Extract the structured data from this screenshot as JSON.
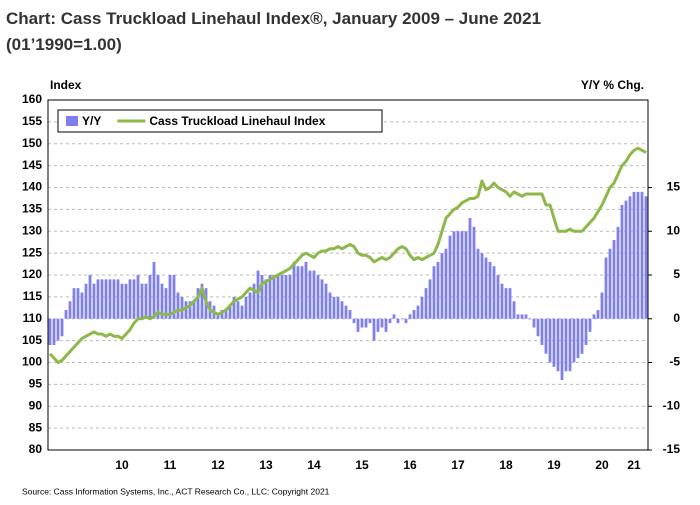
{
  "chart_data": {
    "type": "combo",
    "title": "Chart: Cass Truckload Linehaul Index®, January 2009 – June 2021",
    "subtitle": "(01’1990=1.00)",
    "y_label": "Index",
    "y2_label": "Y/Y % Chg.",
    "source": "Source: Cass Information Systems, Inc., ACT Research Co., LLC: Copyright 2021",
    "categories": [
      null,
      null,
      null,
      null,
      null,
      null,
      null,
      null,
      null,
      null,
      null,
      null,
      null,
      null,
      null,
      null,
      null,
      null,
      "10",
      null,
      null,
      null,
      null,
      null,
      null,
      null,
      null,
      null,
      null,
      null,
      "11",
      null,
      null,
      null,
      null,
      null,
      null,
      null,
      null,
      null,
      null,
      null,
      "12",
      null,
      null,
      null,
      null,
      null,
      null,
      null,
      null,
      null,
      null,
      null,
      "13",
      null,
      null,
      null,
      null,
      null,
      null,
      null,
      null,
      null,
      null,
      null,
      "14",
      null,
      null,
      null,
      null,
      null,
      null,
      null,
      null,
      null,
      null,
      null,
      "15",
      null,
      null,
      null,
      null,
      null,
      null,
      null,
      null,
      null,
      null,
      null,
      "16",
      null,
      null,
      null,
      null,
      null,
      null,
      null,
      null,
      null,
      null,
      null,
      "17",
      null,
      null,
      null,
      null,
      null,
      null,
      null,
      null,
      null,
      null,
      null,
      "18",
      null,
      null,
      null,
      null,
      null,
      null,
      null,
      null,
      null,
      null,
      null,
      "19",
      null,
      null,
      null,
      null,
      null,
      null,
      null,
      null,
      null,
      null,
      null,
      "20",
      null,
      null,
      null,
      null,
      null,
      null,
      null,
      "21",
      null,
      null,
      null
    ],
    "ylim": [
      80,
      160
    ],
    "yticks": [
      80,
      85,
      90,
      95,
      100,
      105,
      110,
      115,
      120,
      125,
      130,
      135,
      140,
      145,
      150,
      155,
      160
    ],
    "y2lim": [
      -15,
      25
    ],
    "y2ticks": [
      -15,
      -10,
      -5,
      0,
      5,
      10,
      15
    ],
    "grid": true,
    "legend": "top-left",
    "series": [
      {
        "name": "Y/Y",
        "type": "bar",
        "axis": "y2",
        "color": "#7f7ff0",
        "values": [
          -3,
          -3,
          -2.5,
          -2,
          1,
          2,
          3.5,
          3.5,
          3,
          4,
          5,
          4,
          4.5,
          4.5,
          4.5,
          4.5,
          4.5,
          4.5,
          4,
          4,
          4.5,
          4.5,
          5,
          4,
          4,
          5,
          6.5,
          5,
          4,
          3.5,
          5,
          5,
          3,
          2.5,
          2,
          2,
          2,
          3.5,
          4,
          3.5,
          2,
          1.5,
          0.5,
          1,
          1,
          1.5,
          2.5,
          2,
          1.5,
          2.5,
          3,
          4,
          5.5,
          5,
          4.5,
          5,
          5,
          5,
          5,
          5,
          5,
          6.5,
          6,
          6,
          6.5,
          5.5,
          5.5,
          5,
          4.5,
          4,
          3,
          2.5,
          2.5,
          2,
          1.5,
          1,
          -0.5,
          -1.5,
          -1,
          -1,
          -0.5,
          -2.5,
          -1.5,
          -1,
          -1.5,
          -0.5,
          0.5,
          -0.5,
          0,
          -0.5,
          0.5,
          1,
          1.5,
          2.5,
          3.5,
          4.5,
          6,
          6.5,
          7.5,
          8,
          9.5,
          10,
          10,
          10,
          10,
          11.5,
          10.5,
          8,
          7.5,
          7,
          6.5,
          6,
          5,
          4,
          3.5,
          3.5,
          2,
          0.5,
          0.5,
          0.5,
          0,
          -1,
          -2,
          -3,
          -4,
          -5,
          -5.5,
          -6,
          -7,
          -6,
          -6,
          -5,
          -4.5,
          -4,
          -3,
          -1.5,
          0.5,
          1,
          3,
          7,
          8,
          9,
          10.5,
          13,
          13.5,
          14,
          14.5,
          14.5,
          14.5,
          14
        ]
      },
      {
        "name": "Cass Truckload Linehaul Index",
        "type": "line",
        "axis": "y",
        "color": "#8db84a",
        "values": [
          102,
          101,
          100,
          100.5,
          101.5,
          102.5,
          103.5,
          104.5,
          105.5,
          106,
          106.5,
          107,
          106.5,
          106.5,
          106,
          106.5,
          106,
          106,
          105.5,
          106.5,
          107.5,
          109,
          110,
          110,
          110.5,
          110,
          110.5,
          111.5,
          111,
          111,
          111,
          111.5,
          112,
          112,
          112.5,
          113,
          114,
          115,
          117,
          114,
          112,
          111.5,
          111,
          111.5,
          112,
          113,
          114,
          114.5,
          115,
          116,
          117,
          116.5,
          116,
          118,
          118.5,
          119,
          119.5,
          120,
          120.5,
          121,
          121.5,
          122.5,
          123.5,
          124.5,
          125,
          124.5,
          124,
          125,
          125.5,
          125.5,
          126,
          126,
          126.5,
          126,
          126.5,
          127,
          126.5,
          125,
          124.5,
          124.5,
          124,
          123,
          123.5,
          124,
          123.5,
          124,
          125,
          126,
          126.5,
          126,
          124.5,
          123.5,
          124,
          123.5,
          124,
          124.5,
          125,
          127,
          130,
          133,
          134,
          135,
          135.5,
          136.5,
          137,
          137.5,
          137.5,
          138,
          141.5,
          139.5,
          140,
          141,
          140,
          139.5,
          139,
          138,
          139,
          138.5,
          138,
          138.5,
          138.5,
          138.5,
          138.5,
          138.5,
          136,
          136,
          133,
          130,
          130,
          130,
          130.5,
          130,
          130,
          130,
          131,
          132,
          133,
          134.5,
          136,
          138,
          140,
          141,
          143,
          145,
          146,
          147.5,
          148.5,
          149,
          148.5,
          148
        ]
      }
    ]
  }
}
